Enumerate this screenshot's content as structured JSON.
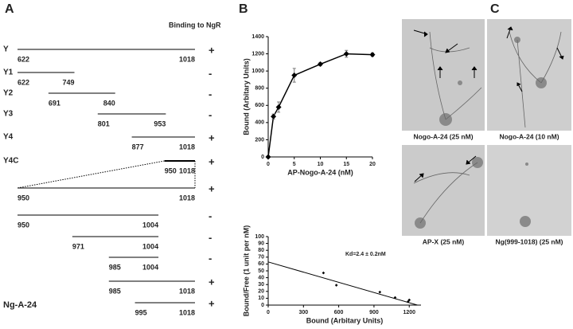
{
  "panels": [
    "A",
    "B",
    "C"
  ],
  "diagram": {
    "header": "Binding to NgR",
    "constructs": [
      {
        "name": "Y",
        "start": 622,
        "end": 1018,
        "binding": "+"
      },
      {
        "name": "Y1",
        "start": 622,
        "end": 749,
        "binding": "-"
      },
      {
        "name": "Y2",
        "start": 691,
        "end": 840,
        "binding": "-"
      },
      {
        "name": "Y3",
        "start": 801,
        "end": 953,
        "binding": "-"
      },
      {
        "name": "Y4",
        "start": 877,
        "end": 1018,
        "binding": "+"
      },
      {
        "name": "Y4C",
        "start": 950,
        "end": 1018,
        "binding": "+"
      },
      {
        "start": 950,
        "end": 1018,
        "binding": "+"
      },
      {
        "start": 950,
        "end": 1004,
        "binding": "-"
      },
      {
        "start": 971,
        "end": 1004,
        "binding": "-"
      },
      {
        "start": 985,
        "end": 1004,
        "binding": "-"
      },
      {
        "start": 985,
        "end": 1018,
        "binding": "+"
      },
      {
        "name": "Ng-A-24",
        "start": 995,
        "end": 1018,
        "binding": "+"
      }
    ]
  },
  "chart_data": [
    {
      "type": "line",
      "x_label": "AP-Nogo-A-24 (nM)",
      "y_label": "Bound  (Arbitary Units)",
      "x": [
        0,
        1,
        2,
        5,
        10,
        15,
        20
      ],
      "series": [
        {
          "color": "#000000",
          "values": [
            0,
            470,
            580,
            950,
            1080,
            1200,
            1190
          ],
          "errors": [
            10,
            30,
            60,
            80,
            20,
            40,
            20
          ]
        }
      ],
      "xlim": [
        0,
        20
      ],
      "xticks": [
        0,
        5,
        10,
        15,
        20
      ],
      "ylim": [
        0,
        1400
      ],
      "yticks": [
        0,
        200,
        400,
        600,
        800,
        1000,
        1200,
        1400
      ]
    },
    {
      "type": "scatter",
      "x_label": "Bound  (Arbitary Units)",
      "y_label": "Bound/Free (1 unit per nM)",
      "annotation": "Kd=2.4 ± 0.2nM",
      "x": [
        470,
        580,
        950,
        1080,
        1200,
        1190
      ],
      "series": [
        {
          "color": "#000000",
          "values": [
            47,
            29,
            19,
            11,
            7.5,
            5
          ]
        }
      ],
      "fit_line": {
        "x": [
          0,
          1270
        ],
        "y": [
          63,
          0
        ]
      },
      "xlim": [
        0,
        1300
      ],
      "xticks": [
        0,
        300,
        600,
        900,
        1200
      ],
      "ylim": [
        0,
        100
      ],
      "yticks": [
        0,
        10,
        20,
        30,
        40,
        50,
        60,
        70,
        80,
        90,
        100
      ]
    }
  ],
  "images": [
    {
      "label": "Nogo-A-24 (25 nM)"
    },
    {
      "label": "Nogo-A-24 (10 nM)"
    },
    {
      "label": "AP-X (25 nM)"
    },
    {
      "label": "Ng(999-1018) (25 nM)"
    }
  ]
}
